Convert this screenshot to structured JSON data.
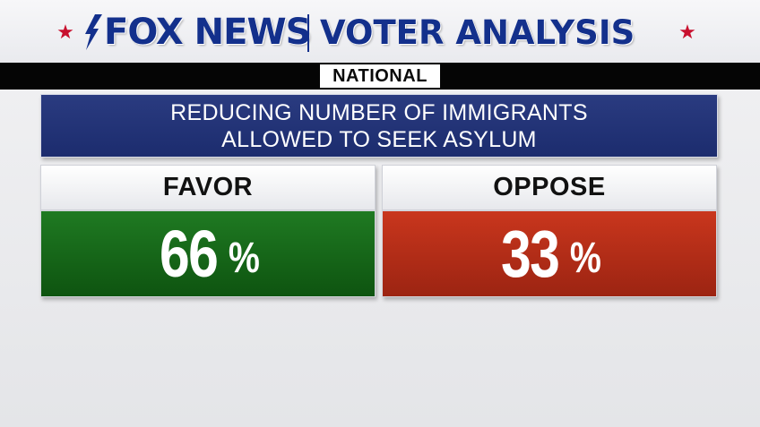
{
  "header": {
    "logo_text": "FOX NEWS",
    "title": "VOTER ANALYSIS",
    "accent_color": "#13308c",
    "star_color": "#c8102e",
    "star_glyph": "★"
  },
  "region": {
    "label": "NATIONAL"
  },
  "question": {
    "line1": "REDUCING NUMBER OF IMMIGRANTS",
    "line2": "ALLOWED TO SEEK ASYLUM"
  },
  "results": [
    {
      "label": "FAVOR",
      "value": "66",
      "unit": "%",
      "color": "#1a6b1c"
    },
    {
      "label": "OPPOSE",
      "value": "33",
      "unit": "%",
      "color": "#b52d18"
    }
  ]
}
